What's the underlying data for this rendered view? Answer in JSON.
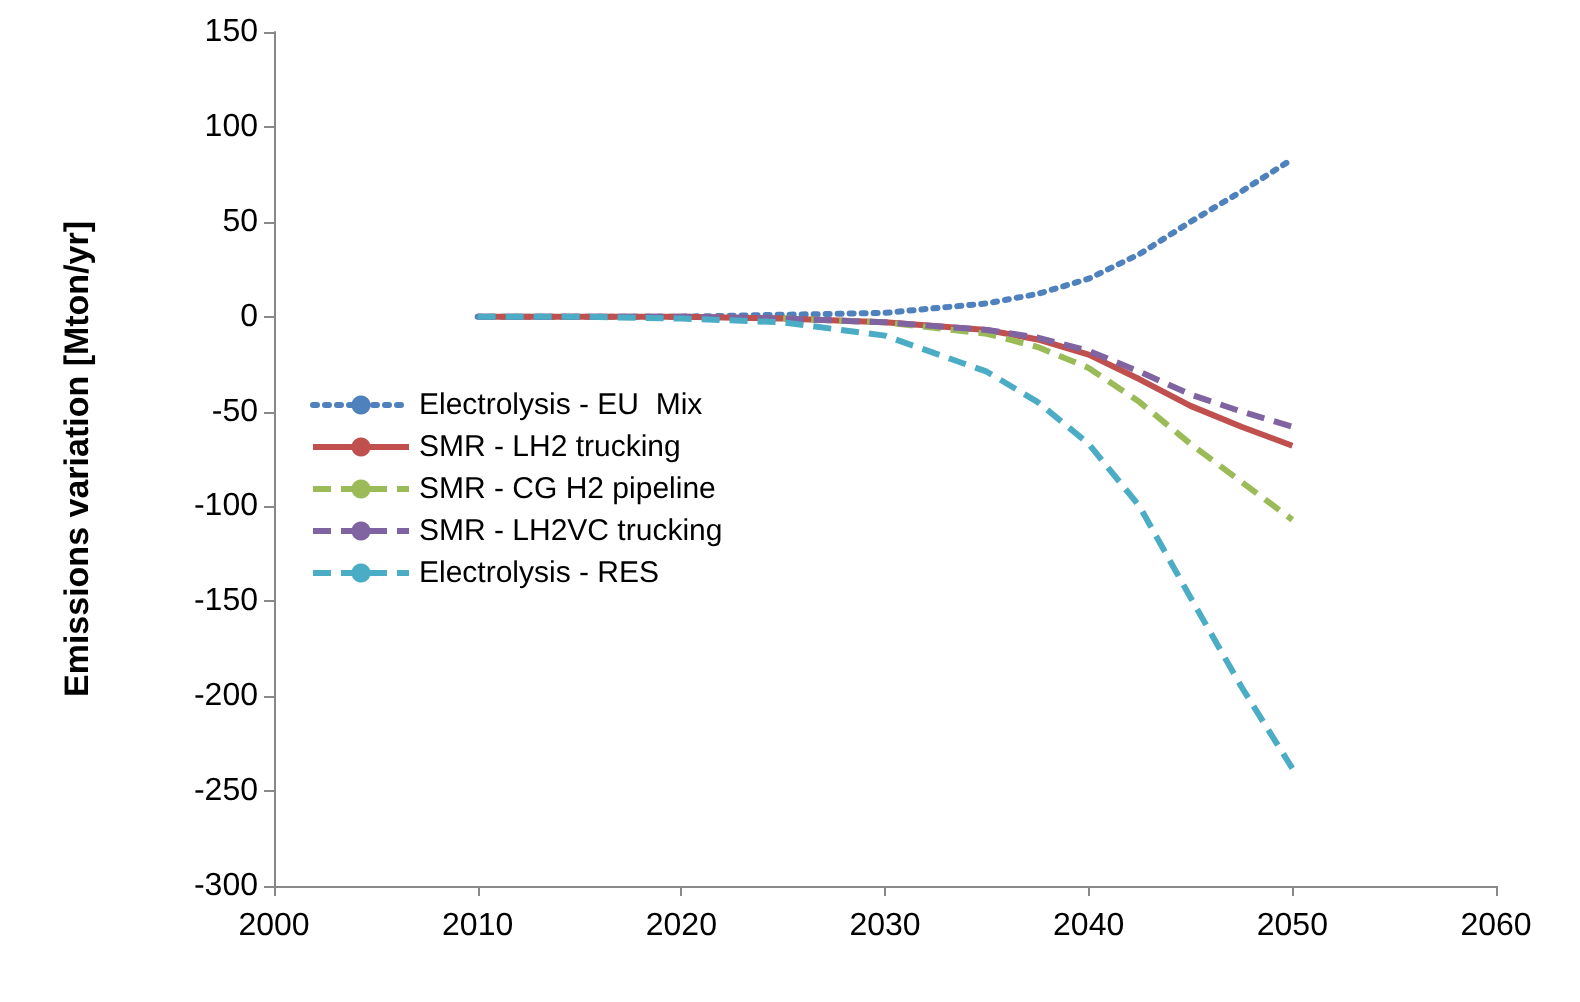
{
  "chart_data": {
    "type": "line",
    "ylabel": "Emissions variation [Mton/yr]",
    "x": [
      2010,
      2015,
      2020,
      2025,
      2030,
      2035,
      2037.5,
      2040,
      2042.5,
      2045,
      2047.5,
      2050
    ],
    "xlim": [
      2000,
      2060
    ],
    "xticks": [
      2000,
      2010,
      2020,
      2030,
      2040,
      2050,
      2060
    ],
    "ylim": [
      -300,
      150
    ],
    "yticks": [
      -300,
      -250,
      -200,
      -150,
      -100,
      -50,
      0,
      50,
      100,
      150
    ],
    "grid": false,
    "legend": "left",
    "marker": "none",
    "series": [
      {
        "name": "Electrolysis - EU  Mix",
        "color": "#4f81bd",
        "line_style": "dotted",
        "values": [
          0,
          0,
          0,
          1,
          2,
          7,
          12,
          20,
          33,
          50,
          66,
          83
        ]
      },
      {
        "name": "SMR - LH2 trucking",
        "color": "#c0504d",
        "line_style": "solid",
        "values": [
          0,
          0,
          0,
          -1,
          -3,
          -7,
          -12,
          -20,
          -33,
          -47,
          -58,
          -68
        ]
      },
      {
        "name": "SMR - CG H2 pipeline",
        "color": "#9bbb59",
        "line_style": "dashed",
        "values": [
          null,
          null,
          null,
          -1,
          -3,
          -9,
          -16,
          -27,
          -45,
          -67,
          -87,
          -107
        ]
      },
      {
        "name": "SMR - LH2VC trucking",
        "color": "#8064a2",
        "line_style": "dashed",
        "values": [
          0,
          0,
          0,
          -1,
          -3,
          -7,
          -11,
          -18,
          -29,
          -41,
          -50,
          -58
        ]
      },
      {
        "name": "Electrolysis - RES",
        "color": "#4bacc6",
        "line_style": "dashed",
        "values": [
          0,
          0,
          -1,
          -3,
          -10,
          -29,
          -45,
          -67,
          -100,
          -148,
          -195,
          -238
        ]
      }
    ]
  }
}
